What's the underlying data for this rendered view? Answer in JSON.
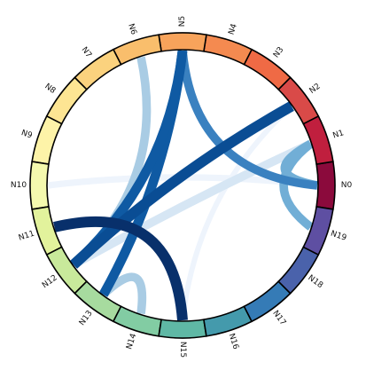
{
  "chart_data": {
    "type": "chord",
    "nodes": [
      {
        "label": "N0",
        "color": "#8b0a3c"
      },
      {
        "label": "N1",
        "color": "#c01f3e"
      },
      {
        "label": "N2",
        "color": "#d94a48"
      },
      {
        "label": "N3",
        "color": "#ef6a45"
      },
      {
        "label": "N4",
        "color": "#f48a50"
      },
      {
        "label": "N5",
        "color": "#f7a35b"
      },
      {
        "label": "N6",
        "color": "#f9be6c"
      },
      {
        "label": "N7",
        "color": "#fbd27e"
      },
      {
        "label": "N8",
        "color": "#fde593"
      },
      {
        "label": "N9",
        "color": "#fdf3a8"
      },
      {
        "label": "N10",
        "color": "#f4f9ae"
      },
      {
        "label": "N11",
        "color": "#e2f29c"
      },
      {
        "label": "N12",
        "color": "#c8e99b"
      },
      {
        "label": "N13",
        "color": "#a7db9f"
      },
      {
        "label": "N14",
        "color": "#82cca3"
      },
      {
        "label": "N15",
        "color": "#5fb8a5"
      },
      {
        "label": "N16",
        "color": "#449aac"
      },
      {
        "label": "N17",
        "color": "#357bb6"
      },
      {
        "label": "N18",
        "color": "#4a62ab"
      },
      {
        "label": "N19",
        "color": "#5e4fa2"
      }
    ],
    "links": [
      {
        "source": "N0",
        "target": "N10",
        "color": "#eef4fc",
        "weight": 0.6
      },
      {
        "source": "N2",
        "target": "N15",
        "color": "#eef4fc",
        "weight": 0.5
      },
      {
        "source": "N1",
        "target": "N12",
        "color": "#d6e6f4",
        "weight": 0.8
      },
      {
        "source": "N6",
        "target": "N12",
        "color": "#a9cce4",
        "weight": 0.8
      },
      {
        "source": "N14",
        "target": "N13",
        "color": "#a9cce4",
        "weight": 0.8
      },
      {
        "source": "N1",
        "target": "N0",
        "color": "#71aed6",
        "weight": 0.8
      },
      {
        "source": "N1",
        "target": "N19",
        "color": "#71aed6",
        "weight": 0.8
      },
      {
        "source": "N5",
        "target": "N0",
        "color": "#3a81c0",
        "weight": 0.8
      },
      {
        "source": "N5",
        "target": "N13",
        "color": "#0f5aa3",
        "weight": 0.9
      },
      {
        "source": "N5",
        "target": "N12",
        "color": "#0f5aa3",
        "weight": 0.9
      },
      {
        "source": "N2",
        "target": "N12",
        "color": "#0a4d94",
        "weight": 1.0
      },
      {
        "source": "N11",
        "target": "N15",
        "color": "#08306b",
        "weight": 1.0
      }
    ]
  }
}
